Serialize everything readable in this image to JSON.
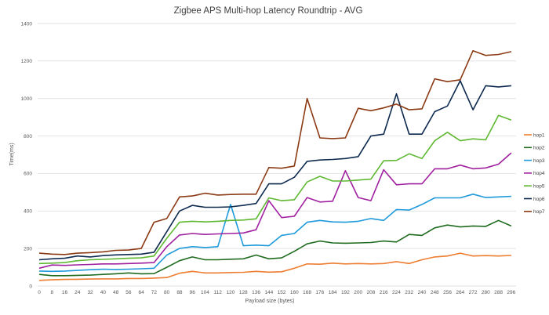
{
  "chart_data": {
    "type": "line",
    "title": "Zigbee APS Multi-hop Latency Roundtrip - AVG",
    "xlabel": "Payload size (bytes)",
    "ylabel": "Time(ms)",
    "ylim": [
      0,
      1400
    ],
    "yticks": [
      "0",
      "200",
      "400",
      "600",
      "800",
      "1000",
      "1200",
      "1400"
    ],
    "ytick_values": [
      0,
      200,
      400,
      600,
      800,
      1000,
      1200,
      1400
    ],
    "grid": true,
    "legend_position": "right",
    "categories": [
      "0",
      "8",
      "16",
      "24",
      "32",
      "40",
      "48",
      "56",
      "64",
      "72",
      "80",
      "88",
      "96",
      "104",
      "112",
      "120",
      "128",
      "136",
      "144",
      "152",
      "160",
      "168",
      "176",
      "184",
      "192",
      "200",
      "208",
      "216",
      "224",
      "232",
      "240",
      "248",
      "256",
      "264",
      "272",
      "280",
      "288",
      "296"
    ],
    "series": [
      {
        "name": "hop1",
        "color": "#ED7D31",
        "values": [
          30,
          33,
          35,
          36,
          37,
          38,
          38,
          40,
          40,
          42,
          45,
          68,
          78,
          70,
          70,
          72,
          73,
          78,
          74,
          76,
          95,
          118,
          116,
          122,
          118,
          120,
          118,
          120,
          130,
          120,
          140,
          155,
          160,
          175,
          160,
          162,
          160,
          163
        ]
      },
      {
        "name": "hop2",
        "color": "#1F6B1F",
        "values": [
          62,
          55,
          55,
          57,
          58,
          62,
          65,
          70,
          65,
          66,
          100,
          135,
          155,
          140,
          140,
          143,
          145,
          165,
          145,
          150,
          185,
          225,
          240,
          230,
          228,
          230,
          232,
          240,
          235,
          275,
          270,
          310,
          325,
          315,
          320,
          318,
          350,
          320
        ]
      },
      {
        "name": "hop3",
        "color": "#1E9ADB",
        "values": [
          80,
          78,
          80,
          83,
          87,
          90,
          88,
          90,
          92,
          95,
          165,
          200,
          210,
          205,
          210,
          435,
          215,
          218,
          215,
          270,
          280,
          340,
          350,
          342,
          340,
          345,
          360,
          350,
          408,
          405,
          435,
          470,
          470,
          470,
          490,
          472,
          475,
          478
        ]
      },
      {
        "name": "hop4",
        "color": "#A020A0",
        "values": [
          95,
          112,
          110,
          113,
          115,
          118,
          118,
          120,
          122,
          125,
          210,
          272,
          280,
          275,
          278,
          280,
          283,
          300,
          455,
          365,
          372,
          472,
          448,
          452,
          615,
          472,
          455,
          620,
          540,
          545,
          545,
          625,
          625,
          645,
          625,
          630,
          650,
          710
        ]
      },
      {
        "name": "hop5",
        "color": "#5FB832",
        "values": [
          120,
          122,
          125,
          135,
          140,
          142,
          145,
          148,
          150,
          160,
          255,
          340,
          345,
          342,
          345,
          350,
          352,
          358,
          470,
          455,
          460,
          555,
          585,
          560,
          560,
          565,
          570,
          668,
          670,
          705,
          680,
          775,
          820,
          775,
          785,
          780,
          910,
          885
        ]
      },
      {
        "name": "hop6",
        "color": "#0E2A4F",
        "values": [
          140,
          145,
          148,
          160,
          155,
          162,
          166,
          168,
          170,
          180,
          290,
          400,
          430,
          420,
          420,
          422,
          430,
          440,
          545,
          545,
          580,
          665,
          672,
          675,
          680,
          690,
          800,
          810,
          1025,
          810,
          810,
          930,
          960,
          1095,
          940,
          1068,
          1062,
          1068
        ]
      },
      {
        "name": "hop7",
        "color": "#8B3A14",
        "values": [
          175,
          170,
          168,
          175,
          178,
          182,
          190,
          192,
          200,
          340,
          360,
          475,
          480,
          495,
          485,
          488,
          490,
          490,
          632,
          628,
          640,
          1000,
          790,
          786,
          790,
          948,
          935,
          950,
          970,
          940,
          945,
          1105,
          1090,
          1100,
          1255,
          1230,
          1235,
          1250
        ]
      }
    ]
  }
}
